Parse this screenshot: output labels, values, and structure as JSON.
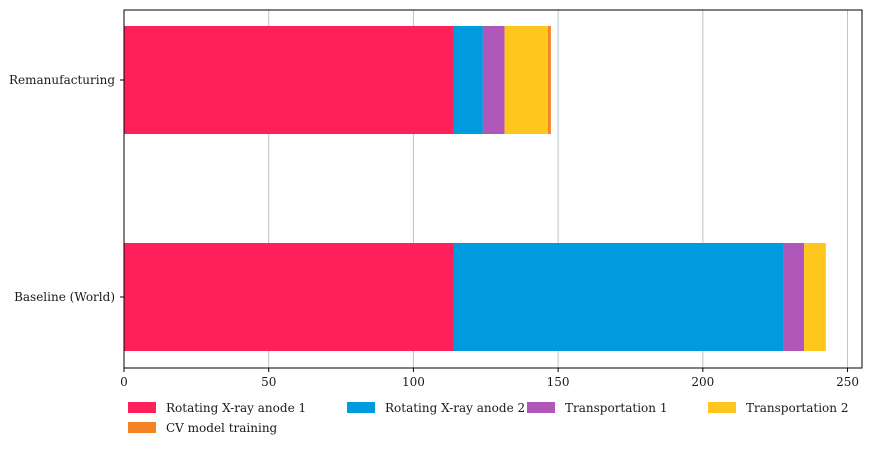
{
  "chart_data": {
    "type": "bar",
    "orientation": "horizontal",
    "stacked": true,
    "title": "",
    "xlabel": "",
    "ylabel": "",
    "xlim": [
      0,
      255
    ],
    "xticks": [
      0,
      50,
      100,
      150,
      200,
      250
    ],
    "grid": "vertical",
    "legend_position": "bottom",
    "categories": [
      "Remanufacturing",
      "Baseline (World)"
    ],
    "series": [
      {
        "name": "Rotating X-ray anode 1",
        "color": "#ff1f5b",
        "values": [
          114,
          114
        ]
      },
      {
        "name": "Rotating X-ray anode 2",
        "color": "#009ade",
        "values": [
          10,
          114
        ]
      },
      {
        "name": "Transportation 1",
        "color": "#af58ba",
        "values": [
          7.5,
          7
        ]
      },
      {
        "name": "Transportation 2",
        "color": "#ffc61e",
        "values": [
          15,
          7.5
        ]
      },
      {
        "name": "CV model training",
        "color": "#f28522",
        "values": [
          1,
          0
        ]
      }
    ]
  }
}
